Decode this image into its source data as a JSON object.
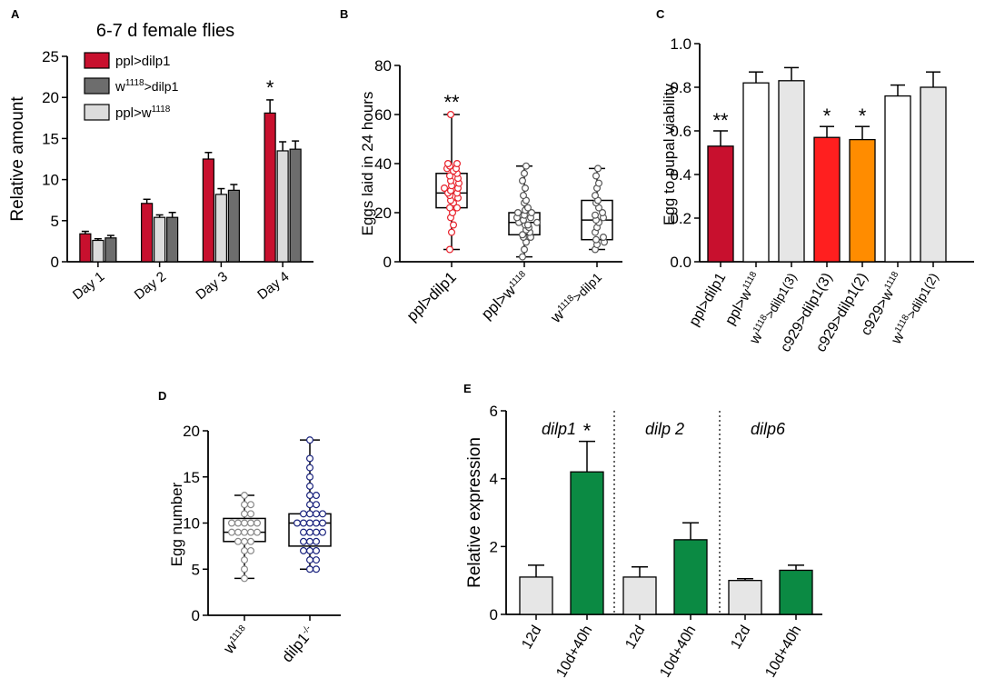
{
  "chart_data": [
    {
      "panel": "A",
      "type": "bar",
      "title": "6-7 d female flies",
      "ylabel": "Relative amount",
      "xlabel": "",
      "ylim": [
        0,
        25
      ],
      "yticks": [
        0,
        5,
        10,
        15,
        20,
        25
      ],
      "categories": [
        "Day 1",
        "Day 2",
        "Day 3",
        "Day 4"
      ],
      "series": [
        {
          "name": "ppl>dilp1",
          "label_base": "ppl>dilp1",
          "label_sup": "",
          "label_tail": "",
          "color": "#c8102e",
          "values": [
            3.4,
            7.1,
            12.5,
            18.1
          ],
          "errors": [
            0.3,
            0.5,
            0.8,
            1.6
          ]
        },
        {
          "name": "ppl>w1118",
          "label_base": "ppl>w",
          "label_sup": "1118",
          "label_tail": "",
          "color": "#dcdcdc",
          "values": [
            2.6,
            5.4,
            8.2,
            13.5
          ],
          "errors": [
            0.2,
            0.3,
            0.7,
            1.1
          ]
        },
        {
          "name": "w1118>dilp1",
          "label_base": "w",
          "label_sup": "1118",
          "label_tail": ">dilp1",
          "color": "#6d6d6d",
          "values": [
            2.9,
            5.4,
            8.7,
            13.7
          ],
          "errors": [
            0.3,
            0.6,
            0.7,
            1.0
          ]
        }
      ],
      "legend_order": [
        0,
        2,
        1
      ],
      "annotations": [
        {
          "category": 3,
          "text": "*"
        }
      ]
    },
    {
      "panel": "B",
      "type": "box",
      "ylabel": "Eggs laid in 24 hours",
      "ylim": [
        0,
        80
      ],
      "yticks": [
        0,
        20,
        40,
        60,
        80
      ],
      "groups": [
        {
          "base": "ppl>dilp1",
          "sup": "",
          "tail": "",
          "color": "#e8202a",
          "min": 5,
          "q1": 22,
          "median": 28,
          "q3": 36,
          "max": 60,
          "points": [
            5,
            12,
            15,
            18,
            20,
            22,
            22,
            24,
            25,
            26,
            27,
            28,
            28,
            29,
            30,
            30,
            31,
            32,
            33,
            34,
            35,
            36,
            37,
            38,
            38,
            39,
            40,
            40,
            60
          ]
        },
        {
          "base": "ppl>w",
          "sup": "1118",
          "tail": "",
          "color": "#555555",
          "min": 2,
          "q1": 11,
          "median": 16,
          "q3": 20,
          "max": 39,
          "points": [
            2,
            5,
            8,
            10,
            10,
            11,
            12,
            13,
            14,
            15,
            15,
            16,
            16,
            17,
            18,
            18,
            19,
            20,
            20,
            21,
            22,
            24,
            25,
            27,
            30,
            33,
            36,
            39
          ]
        },
        {
          "base": "w",
          "sup": "1118",
          "tail": ">dilp1",
          "color": "#555555",
          "min": 5,
          "q1": 9,
          "median": 17,
          "q3": 25,
          "max": 38,
          "points": [
            5,
            7,
            8,
            9,
            10,
            12,
            14,
            16,
            17,
            18,
            19,
            20,
            22,
            24,
            25,
            27,
            30,
            32,
            35,
            38
          ]
        }
      ],
      "annotations": [
        {
          "group": 0,
          "text": "**"
        }
      ]
    },
    {
      "panel": "C",
      "type": "bar",
      "ylabel": "Egg to pupal viability",
      "ylim": [
        0,
        1.0
      ],
      "yticks": [
        "0.0",
        "0.2",
        "0.4",
        "0.6",
        "0.8",
        "1.0"
      ],
      "bars": [
        {
          "base": "ppl>dilp1",
          "sup": "",
          "tail": "",
          "value": 0.53,
          "error": 0.07,
          "color": "#c8102e",
          "star": "**"
        },
        {
          "base": "ppl>w",
          "sup": "1118",
          "tail": "",
          "value": 0.82,
          "error": 0.05,
          "color": "#ffffff",
          "star": ""
        },
        {
          "base": "w",
          "sup": "1118",
          "tail": ">dilp1(3)",
          "value": 0.83,
          "error": 0.06,
          "color": "#e6e6e6",
          "star": ""
        },
        {
          "base": "c929>dilp1(3)",
          "sup": "",
          "tail": "",
          "value": 0.57,
          "error": 0.05,
          "color": "#ff1f1f",
          "star": "*"
        },
        {
          "base": "c929>dilp1(2)",
          "sup": "",
          "tail": "",
          "value": 0.56,
          "error": 0.06,
          "color": "#ff8c00",
          "star": "*"
        },
        {
          "base": "c929>w",
          "sup": "1118",
          "tail": "",
          "value": 0.76,
          "error": 0.05,
          "color": "#ffffff",
          "star": ""
        },
        {
          "base": "w",
          "sup": "1118",
          "tail": ">dilp1(2)",
          "value": 0.8,
          "error": 0.07,
          "color": "#e6e6e6",
          "star": ""
        }
      ]
    },
    {
      "panel": "D",
      "type": "box",
      "ylabel": "Egg number",
      "ylim": [
        0,
        20
      ],
      "yticks": [
        0,
        5,
        10,
        15,
        20
      ],
      "groups": [
        {
          "base": "w",
          "sup": "1118",
          "tail": "",
          "color": "#888888",
          "min": 4,
          "q1": 8,
          "median": 9,
          "q3": 10.5,
          "max": 13,
          "points": [
            4,
            5,
            6,
            7,
            7,
            8,
            8,
            8,
            9,
            9,
            9,
            9,
            9,
            10,
            10,
            10,
            10,
            10,
            11,
            11,
            12,
            12,
            13
          ]
        },
        {
          "base": "dilp1",
          "sup": "-/-",
          "tail": "",
          "color": "#1a237e",
          "min": 5,
          "q1": 7.5,
          "median": 10,
          "q3": 11,
          "max": 19,
          "points": [
            5,
            5,
            6,
            6,
            7,
            7,
            7,
            8,
            8,
            8,
            9,
            9,
            9,
            9,
            10,
            10,
            10,
            10,
            10,
            11,
            11,
            11,
            11,
            12,
            12,
            13,
            13,
            14,
            15,
            16,
            17,
            19
          ]
        }
      ]
    },
    {
      "panel": "E",
      "type": "bar",
      "ylabel": "Relative expression",
      "ylim": [
        0,
        6
      ],
      "yticks": [
        0,
        2,
        4,
        6
      ],
      "groups": [
        {
          "title": "dilp1",
          "bars": [
            {
              "label": "12d",
              "value": 1.1,
              "error": 0.35,
              "color": "#e6e6e6"
            },
            {
              "label": "10d+40h",
              "value": 4.2,
              "error": 0.9,
              "color": "#0b8a43",
              "star": "*"
            }
          ]
        },
        {
          "title": "dilp 2",
          "bars": [
            {
              "label": "12d",
              "value": 1.1,
              "error": 0.3,
              "color": "#e6e6e6"
            },
            {
              "label": "10d+40h",
              "value": 2.2,
              "error": 0.5,
              "color": "#0b8a43"
            }
          ]
        },
        {
          "title": "dilp6",
          "bars": [
            {
              "label": "12d",
              "value": 1.0,
              "error": 0.05,
              "color": "#e6e6e6"
            },
            {
              "label": "10d+40h",
              "value": 1.3,
              "error": 0.15,
              "color": "#0b8a43"
            }
          ]
        }
      ]
    }
  ]
}
